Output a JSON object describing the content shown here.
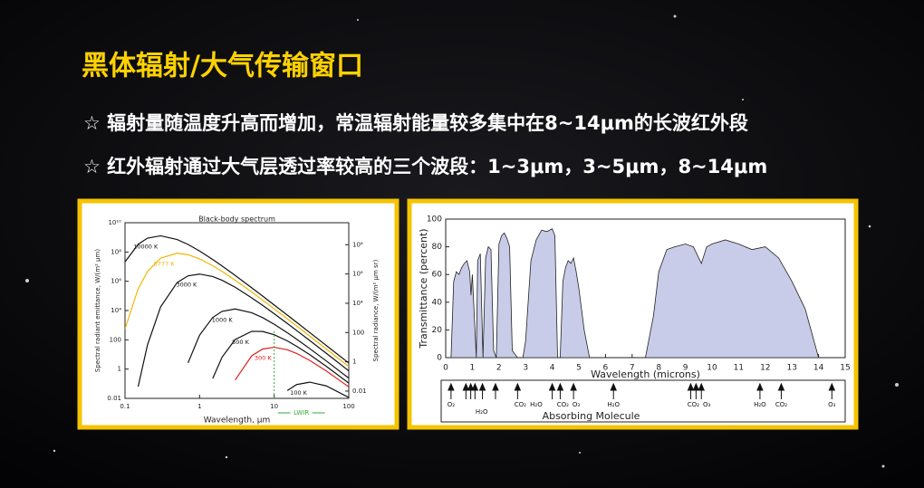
{
  "header": {
    "title": "黑体辐射/大气传输窗口"
  },
  "bullets": [
    "☆ 辐射量随温度升高而增加，常温辐射能量较多集中在8~14μm的长波红外段",
    "☆ 红外辐射通过大气层透过率较高的三个波段：1~3μm，3~5μm，8~14μm"
  ],
  "chart_data": [
    {
      "type": "line",
      "title": "Black-body spectrum",
      "x_label": "Wavelength, μm",
      "y_label": "Spectral radiant emittance, W/(m² μm)",
      "y2_label": "Spectral radiance, W/(m² μm sr)",
      "log_x": true,
      "log_y": true,
      "x": [
        0.1,
        0.15,
        0.2,
        0.3,
        0.5,
        0.7,
        1,
        1.5,
        2,
        3,
        5,
        7,
        10,
        15,
        20,
        30,
        50,
        100
      ],
      "series": [
        {
          "name": "10000 K",
          "color": "#111111",
          "values": [
            21000000,
            335000000,
            880000000,
            1280000000,
            710000000,
            328000000,
            116000000,
            30600000,
            11100000,
            2500000,
            360000,
            98000,
            24000,
            4900,
            1570,
            313,
            41,
            2.6
          ]
        },
        {
          "name": "5777 K",
          "color": "#f2b600",
          "values": [
            560,
            306000,
            4600000,
            38000000,
            83000000,
            65000000,
            34000000,
            11600000,
            4700000,
            1190000,
            186000,
            52000,
            13200,
            2730,
            881,
            178,
            23.5,
            1.49
          ]
        },
        {
          "name": "3000 K",
          "color": "#111111",
          "values": [
            null,
            0.064,
            44,
            17500,
            820000,
            2360000,
            3100000,
            2100000,
            1170000,
            390000,
            74000,
            22700,
            6100,
            1310,
            431,
            89,
            11.9,
            0.76
          ]
        },
        {
          "name": "1000 K",
          "color": "#111111",
          "values": [
            null,
            null,
            null,
            null,
            null,
            2.65,
            210,
            3350,
            8800,
            12800,
            7100,
            3280,
            1160,
            306,
            111,
            25,
            3.6,
            0.24
          ]
        },
        {
          "name": "500 K",
          "color": "#111111",
          "values": [
            null,
            null,
            null,
            null,
            null,
            null,
            null,
            0.23,
            6.5,
            105,
            380,
            372,
            223,
            85,
            36,
            9.6,
            1.54,
            0.11
          ]
        },
        {
          "name": "300 K",
          "color": "#e0201b",
          "values": [
            null,
            null,
            null,
            null,
            null,
            null,
            null,
            null,
            null,
            0.18,
            8.1,
            23.6,
            31,
            21,
            11.7,
            3.9,
            0.74,
            0.061
          ]
        },
        {
          "name": "100 K",
          "color": "#111111",
          "values": [
            null,
            null,
            null,
            null,
            null,
            null,
            null,
            null,
            null,
            null,
            null,
            null,
            null,
            0.034,
            0.088,
            0.128,
            0.071,
            0.0116
          ]
        }
      ],
      "xlim": [
        0.1,
        100
      ],
      "xticks": [
        0.1,
        1,
        10,
        100
      ],
      "ylim": [
        0.01,
        10000000000
      ],
      "yticks": [
        {
          "value": 10000000000,
          "label": "10¹⁰"
        },
        {
          "value": 100000000,
          "label": "10⁸"
        },
        {
          "value": 1000000,
          "label": "10⁶"
        },
        {
          "value": 10000,
          "label": "10⁴"
        },
        100,
        1,
        0.01
      ],
      "y2lim": [
        0.00318,
        3180000000
      ],
      "y2ticks": [
        {
          "value": 100000000,
          "label": "10⁸"
        },
        {
          "value": 1000000,
          "label": "10⁶"
        },
        {
          "value": 10000,
          "label": "10⁴"
        },
        100,
        1,
        0.01
      ],
      "reference_line": {
        "x": 10,
        "color": "#33aa33",
        "label": "LWIR"
      }
    },
    {
      "type": "area",
      "x_label": "Wavelength (microns)",
      "y_label": "Transmittance (percent)",
      "color": "#c9cce8",
      "x": [
        0.2,
        0.3,
        0.4,
        0.5,
        0.6,
        0.7,
        0.8,
        0.9,
        0.95,
        1.0,
        1.1,
        1.15,
        1.2,
        1.3,
        1.4,
        1.5,
        1.6,
        1.7,
        1.8,
        1.9,
        2.0,
        2.1,
        2.2,
        2.3,
        2.4,
        2.5,
        2.7,
        2.9,
        3.0,
        3.2,
        3.4,
        3.6,
        3.8,
        4.0,
        4.1,
        4.2,
        4.3,
        4.4,
        4.5,
        4.6,
        4.7,
        4.8,
        4.9,
        5.0,
        5.2,
        5.4,
        6.0,
        7.0,
        7.5,
        7.8,
        8.0,
        8.3,
        8.6,
        9.0,
        9.3,
        9.6,
        9.8,
        10.0,
        10.5,
        11.0,
        11.5,
        12.0,
        12.5,
        13.0,
        13.5,
        14.0,
        15.0
      ],
      "values": [
        0,
        55,
        62,
        60,
        65,
        68,
        70,
        62,
        45,
        60,
        20,
        0,
        70,
        75,
        0,
        72,
        80,
        78,
        5,
        0,
        82,
        88,
        90,
        86,
        80,
        5,
        0,
        0,
        12,
        70,
        85,
        92,
        91,
        93,
        88,
        0,
        0,
        55,
        65,
        70,
        68,
        72,
        62,
        50,
        20,
        0,
        0,
        0,
        0,
        30,
        62,
        78,
        80,
        82,
        80,
        68,
        80,
        82,
        85,
        82,
        78,
        80,
        72,
        55,
        35,
        0,
        0
      ],
      "xlim": [
        0,
        15
      ],
      "xticks": [
        0,
        1,
        2,
        3,
        4,
        5,
        6,
        7,
        8,
        9,
        10,
        11,
        12,
        13,
        14,
        15
      ],
      "ylim": [
        0,
        100
      ],
      "yticks": [
        0,
        20,
        40,
        60,
        80,
        100
      ],
      "absorbers": {
        "title": "Absorbing Molecule",
        "arrows": [
          0.2,
          0.76,
          0.94,
          1.1,
          1.38,
          1.87,
          2.7,
          4.0,
          4.3,
          4.8,
          6.3,
          9.2,
          9.4,
          9.6,
          11.8,
          12.6,
          14.5
        ],
        "labels": [
          {
            "text": "O₂",
            "x": 0.2
          },
          {
            "text": "H₂O",
            "x": 1.35
          },
          {
            "text": "CO₂",
            "x": 2.8
          },
          {
            "text": "H₂O",
            "x": 3.4
          },
          {
            "text": "CO₂",
            "x": 4.4
          },
          {
            "text": "O₃",
            "x": 4.9
          },
          {
            "text": "H₂O",
            "x": 6.3
          },
          {
            "text": "CO₂",
            "x": 9.3
          },
          {
            "text": "O₃",
            "x": 9.8
          },
          {
            "text": "H₂O",
            "x": 11.8
          },
          {
            "text": "CO₂",
            "x": 12.6
          },
          {
            "text": "O₃",
            "x": 14.5
          }
        ]
      }
    }
  ]
}
